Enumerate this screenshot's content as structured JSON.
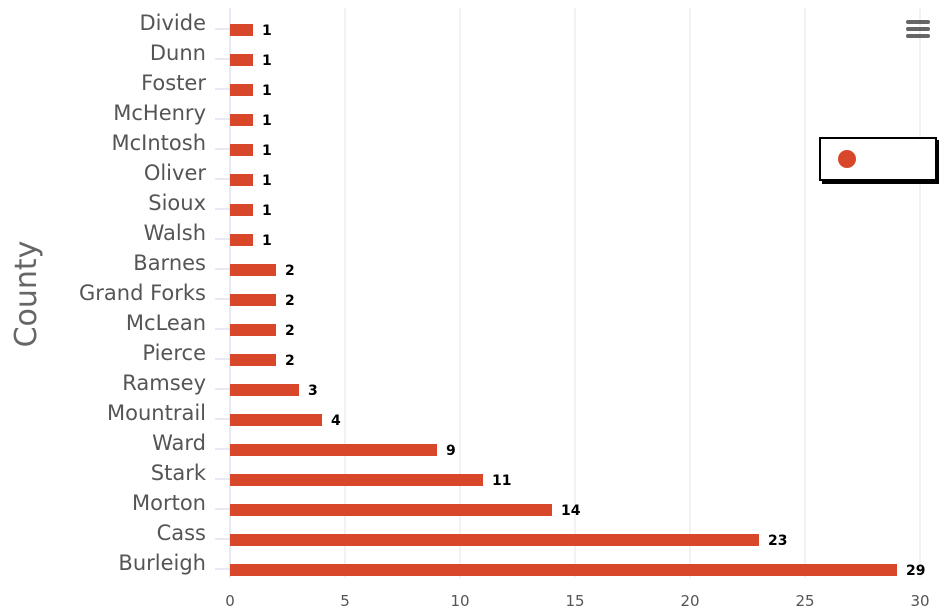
{
  "chart_data": {
    "type": "bar",
    "orientation": "horizontal",
    "ylabel": "County",
    "categories": [
      "Divide",
      "Dunn",
      "Foster",
      "McHenry",
      "McIntosh",
      "Oliver",
      "Sioux",
      "Walsh",
      "Barnes",
      "Grand Forks",
      "McLean",
      "Pierce",
      "Ramsey",
      "Mountrail",
      "Ward",
      "Stark",
      "Morton",
      "Cass",
      "Burleigh"
    ],
    "values": [
      1,
      1,
      1,
      1,
      1,
      1,
      1,
      1,
      2,
      2,
      2,
      2,
      3,
      4,
      9,
      11,
      14,
      23,
      29
    ],
    "xlim": [
      0,
      30
    ],
    "xticks": [
      0,
      5,
      10,
      15,
      20,
      25,
      30
    ],
    "grid": true,
    "legend": {
      "position": "top-right"
    },
    "series_color": "#d9472b"
  },
  "ui": {
    "menu_icon": "hamburger-menu-icon"
  }
}
